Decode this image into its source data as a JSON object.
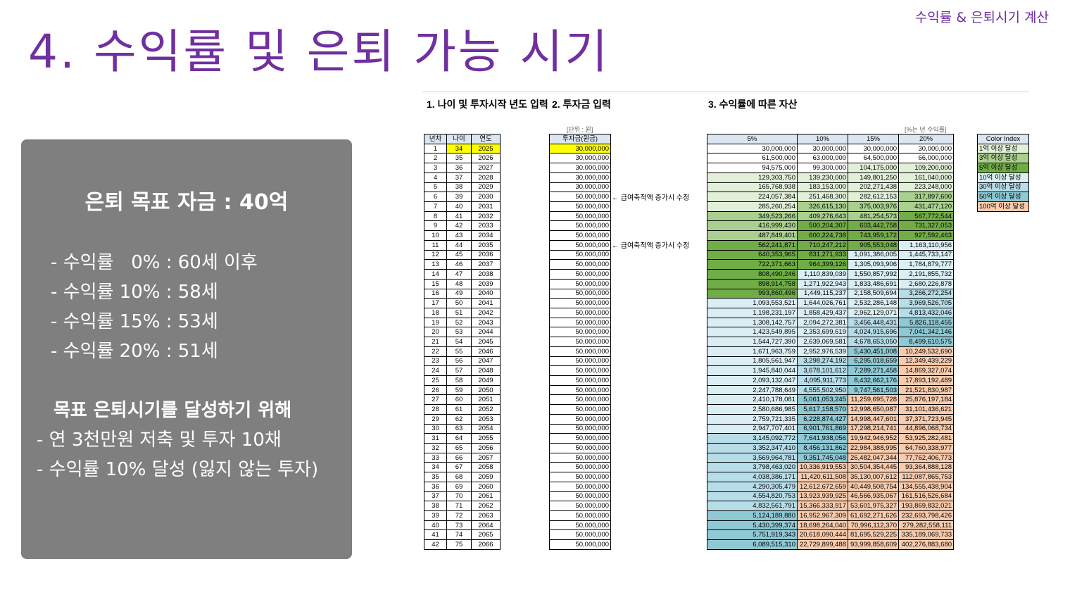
{
  "header": {
    "top_label": "수익률 & 은퇴시기 계산",
    "title": "4. 수익률 및 은퇴 가능 시기"
  },
  "summary": {
    "goal": "은퇴 목표 자금 : 40억",
    "rates": [
      "- 수익률   0% : 60세 이후",
      "- 수익률 10% : 58세",
      "- 수익률 15% : 53세",
      "- 수익률 20% : 51세"
    ],
    "subtitle": "목표 은퇴시기를 달성하기 위해",
    "lines": [
      "- 연 3천만원 저축 및 투자 10채",
      "- 수익률 10% 달성 (잃지 않는 투자)"
    ]
  },
  "sheet": {
    "section1": "1. 나이 및 투자시작 년도 입력",
    "section2": "2. 투자금 입력",
    "section3": "3. 수익률에 따른 자산",
    "unit_note": "[단위 : 원]",
    "rate_note": "[%는 년 수익률]",
    "headers1": [
      "년차",
      "나이",
      "연도"
    ],
    "header2": "투자금(원금)",
    "headers3": [
      "5%",
      "10%",
      "15%",
      "20%"
    ],
    "arrow_note": "← 급여축적액 증가시 수정",
    "colors": {
      "header": "#dce6f1",
      "input": "#ffff00",
      "g1": "#e2f0d9",
      "g3": "#a9d08e",
      "g5": "#70ad47",
      "c10": "#dbeef3",
      "c30": "#b7dde8",
      "c50": "#8fc9d4",
      "r100": "#f8cbad"
    },
    "legend_title": "Color Index",
    "legend": [
      {
        "label": "1억 이상 달성",
        "color": "#e2f0d9"
      },
      {
        "label": "3억 이상 달성",
        "color": "#a9d08e"
      },
      {
        "label": "5억 이상 달성",
        "color": "#70ad47"
      },
      {
        "label": "10억 이상 달성",
        "color": "#dbeef3"
      },
      {
        "label": "30억 이상 달성",
        "color": "#b7dde8"
      },
      {
        "label": "50억 이상 달성",
        "color": "#8fc9d4"
      },
      {
        "label": "100억 이상 달성",
        "color": "#f8cbad"
      }
    ],
    "rows": [
      [
        "1",
        "34",
        "2025",
        "30,000,000",
        "30,000,000",
        "30,000,000",
        "30,000,000",
        "30,000,000"
      ],
      [
        "2",
        "35",
        "2026",
        "30,000,000",
        "61,500,000",
        "63,000,000",
        "64,500,000",
        "66,000,000"
      ],
      [
        "3",
        "36",
        "2027",
        "30,000,000",
        "94,575,000",
        "99,300,000",
        "104,175,000",
        "109,200,000"
      ],
      [
        "4",
        "37",
        "2028",
        "30,000,000",
        "129,303,750",
        "139,230,000",
        "149,801,250",
        "161,040,000"
      ],
      [
        "5",
        "38",
        "2029",
        "30,000,000",
        "165,768,938",
        "183,153,000",
        "202,271,438",
        "223,248,000"
      ],
      [
        "6",
        "39",
        "2030",
        "50,000,000",
        "224,057,384",
        "251,468,300",
        "282,612,153",
        "317,897,600"
      ],
      [
        "7",
        "40",
        "2031",
        "50,000,000",
        "285,260,254",
        "326,615,130",
        "375,003,976",
        "431,477,120"
      ],
      [
        "8",
        "41",
        "2032",
        "50,000,000",
        "349,523,266",
        "409,276,643",
        "481,254,573",
        "567,772,544"
      ],
      [
        "9",
        "42",
        "2033",
        "50,000,000",
        "416,999,430",
        "500,204,307",
        "603,442,758",
        "731,327,053"
      ],
      [
        "10",
        "43",
        "2034",
        "50,000,000",
        "487,849,401",
        "600,224,738",
        "743,959,172",
        "927,592,463"
      ],
      [
        "11",
        "44",
        "2035",
        "50,000,000",
        "562,241,871",
        "710,247,212",
        "905,553,048",
        "1,163,110,956"
      ],
      [
        "12",
        "45",
        "2036",
        "50,000,000",
        "640,353,965",
        "831,271,933",
        "1,091,386,005",
        "1,445,733,147"
      ],
      [
        "13",
        "46",
        "2037",
        "50,000,000",
        "722,371,663",
        "964,399,126",
        "1,305,093,906",
        "1,784,879,777"
      ],
      [
        "14",
        "47",
        "2038",
        "50,000,000",
        "808,490,246",
        "1,110,839,039",
        "1,550,857,992",
        "2,191,855,732"
      ],
      [
        "15",
        "48",
        "2039",
        "50,000,000",
        "898,914,758",
        "1,271,922,943",
        "1,833,486,691",
        "2,680,226,878"
      ],
      [
        "16",
        "49",
        "2040",
        "50,000,000",
        "993,860,496",
        "1,449,115,237",
        "2,158,509,694",
        "3,266,272,254"
      ],
      [
        "17",
        "50",
        "2041",
        "50,000,000",
        "1,093,553,521",
        "1,644,026,761",
        "2,532,286,148",
        "3,969,526,705"
      ],
      [
        "18",
        "51",
        "2042",
        "50,000,000",
        "1,198,231,197",
        "1,858,429,437",
        "2,962,129,071",
        "4,813,432,046"
      ],
      [
        "19",
        "52",
        "2043",
        "50,000,000",
        "1,308,142,757",
        "2,094,272,381",
        "3,456,448,431",
        "5,826,118,455"
      ],
      [
        "20",
        "53",
        "2044",
        "50,000,000",
        "1,423,549,895",
        "2,353,699,619",
        "4,024,915,696",
        "7,041,342,146"
      ],
      [
        "21",
        "54",
        "2045",
        "50,000,000",
        "1,544,727,390",
        "2,639,069,581",
        "4,678,653,050",
        "8,499,610,575"
      ],
      [
        "22",
        "55",
        "2046",
        "50,000,000",
        "1,671,963,759",
        "2,952,976,539",
        "5,430,451,008",
        "10,249,532,690"
      ],
      [
        "23",
        "56",
        "2047",
        "50,000,000",
        "1,805,561,947",
        "3,298,274,192",
        "6,295,018,659",
        "12,349,439,229"
      ],
      [
        "24",
        "57",
        "2048",
        "50,000,000",
        "1,945,840,044",
        "3,678,101,612",
        "7,289,271,458",
        "14,869,327,074"
      ],
      [
        "25",
        "58",
        "2049",
        "50,000,000",
        "2,093,132,047",
        "4,095,911,773",
        "8,432,662,176",
        "17,893,192,489"
      ],
      [
        "26",
        "59",
        "2050",
        "50,000,000",
        "2,247,788,649",
        "4,555,502,950",
        "9,747,561,503",
        "21,521,830,987"
      ],
      [
        "27",
        "60",
        "2051",
        "50,000,000",
        "2,410,178,081",
        "5,061,053,245",
        "11,259,695,728",
        "25,876,197,184"
      ],
      [
        "28",
        "61",
        "2052",
        "50,000,000",
        "2,580,686,985",
        "5,617,158,570",
        "12,998,650,087",
        "31,101,436,621"
      ],
      [
        "29",
        "62",
        "2053",
        "50,000,000",
        "2,759,721,335",
        "6,228,874,427",
        "14,998,447,601",
        "37,371,723,945"
      ],
      [
        "30",
        "63",
        "2054",
        "50,000,000",
        "2,947,707,401",
        "6,901,761,869",
        "17,298,214,741",
        "44,896,068,734"
      ],
      [
        "31",
        "64",
        "2055",
        "50,000,000",
        "3,145,092,772",
        "7,641,938,056",
        "19,942,946,952",
        "53,925,282,481"
      ],
      [
        "32",
        "65",
        "2056",
        "50,000,000",
        "3,352,347,410",
        "8,456,131,862",
        "22,984,388,995",
        "64,760,338,977"
      ],
      [
        "33",
        "66",
        "2057",
        "50,000,000",
        "3,569,964,781",
        "9,351,745,048",
        "26,482,047,344",
        "77,762,406,773"
      ],
      [
        "34",
        "67",
        "2058",
        "50,000,000",
        "3,798,463,020",
        "10,336,919,553",
        "30,504,354,445",
        "93,364,888,128"
      ],
      [
        "35",
        "68",
        "2059",
        "50,000,000",
        "4,038,386,171",
        "11,420,611,508",
        "35,130,007,612",
        "112,087,865,753"
      ],
      [
        "36",
        "69",
        "2060",
        "50,000,000",
        "4,290,305,479",
        "12,612,672,659",
        "40,449,508,754",
        "134,555,438,904"
      ],
      [
        "37",
        "70",
        "2061",
        "50,000,000",
        "4,554,820,753",
        "13,923,939,925",
        "46,566,935,067",
        "161,516,526,684"
      ],
      [
        "38",
        "71",
        "2062",
        "50,000,000",
        "4,832,561,791",
        "15,366,333,917",
        "53,601,975,327",
        "193,869,832,021"
      ],
      [
        "39",
        "72",
        "2063",
        "50,000,000",
        "5,124,189,880",
        "16,952,967,309",
        "61,692,271,626",
        "232,693,798,426"
      ],
      [
        "40",
        "73",
        "2064",
        "50,000,000",
        "5,430,399,374",
        "18,698,264,040",
        "70,996,112,370",
        "279,282,558,111"
      ],
      [
        "41",
        "74",
        "2065",
        "50,000,000",
        "5,751,919,343",
        "20,618,090,444",
        "81,695,529,225",
        "335,189,069,733"
      ],
      [
        "42",
        "75",
        "2066",
        "50,000,000",
        "6,089,515,310",
        "22,729,899,488",
        "93,999,858,609",
        "402,276,883,680"
      ]
    ]
  }
}
